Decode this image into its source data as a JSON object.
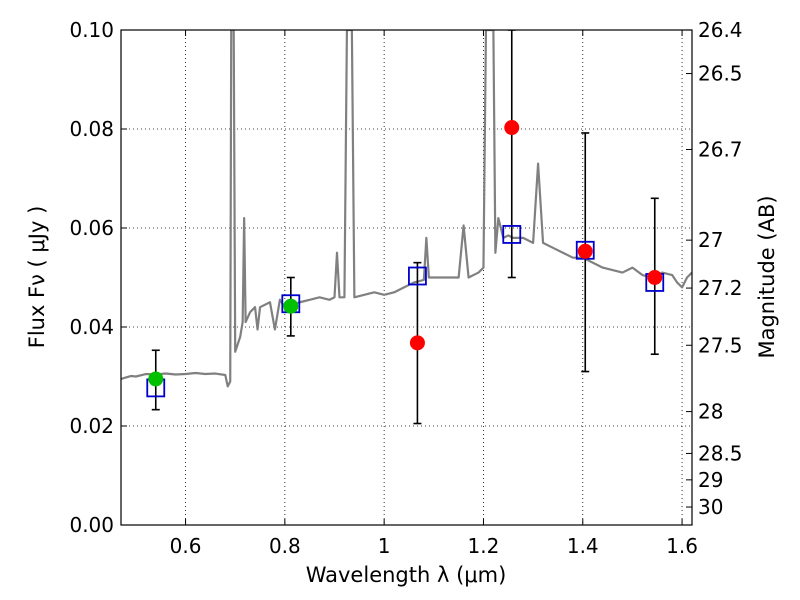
{
  "chart_data": {
    "type": "scatter",
    "xlabel": "Wavelength  λ (μm)",
    "ylabel": "Flux  Fν  ( μJy )",
    "y2label": "Magnitude (AB)",
    "xlim": [
      0.47,
      1.62
    ],
    "ylim": [
      0.0,
      0.1
    ],
    "xticks": [
      0.6,
      0.8,
      1.0,
      1.2,
      1.4,
      1.6
    ],
    "xtick_labels": [
      "0.6",
      "0.8",
      "1",
      "1.2",
      "1.4",
      "1.6"
    ],
    "yticks": [
      0.0,
      0.02,
      0.04,
      0.06,
      0.08,
      0.1
    ],
    "ytick_labels": [
      "0.00",
      "0.02",
      "0.04",
      "0.06",
      "0.08",
      "0.10"
    ],
    "mag_ticks": [
      26.4,
      26.5,
      26.7,
      27,
      27.2,
      27.5,
      28,
      28.5,
      29,
      30
    ],
    "mag_tick_labels": [
      "26.4",
      "26.5",
      "26.7",
      "27",
      "27.2",
      "27.5",
      "28",
      "28.5",
      "29",
      "30"
    ],
    "grid": true,
    "spectrum": {
      "color": "#808080",
      "points": [
        [
          0.47,
          0.0295
        ],
        [
          0.48,
          0.0298
        ],
        [
          0.49,
          0.0301
        ],
        [
          0.5,
          0.03
        ],
        [
          0.52,
          0.0305
        ],
        [
          0.54,
          0.0304
        ],
        [
          0.56,
          0.0306
        ],
        [
          0.58,
          0.0304
        ],
        [
          0.6,
          0.0305
        ],
        [
          0.62,
          0.0307
        ],
        [
          0.64,
          0.0305
        ],
        [
          0.66,
          0.0306
        ],
        [
          0.68,
          0.0303
        ],
        [
          0.685,
          0.028
        ],
        [
          0.69,
          0.029
        ],
        [
          0.692,
          0.1
        ],
        [
          0.697,
          0.1
        ],
        [
          0.7,
          0.035
        ],
        [
          0.71,
          0.038
        ],
        [
          0.715,
          0.041
        ],
        [
          0.718,
          0.062
        ],
        [
          0.721,
          0.041
        ],
        [
          0.73,
          0.043
        ],
        [
          0.74,
          0.044
        ],
        [
          0.745,
          0.0395
        ],
        [
          0.75,
          0.044
        ],
        [
          0.77,
          0.045
        ],
        [
          0.78,
          0.0395
        ],
        [
          0.79,
          0.0455
        ],
        [
          0.8,
          0.044
        ],
        [
          0.83,
          0.045
        ],
        [
          0.85,
          0.0455
        ],
        [
          0.87,
          0.046
        ],
        [
          0.89,
          0.0455
        ],
        [
          0.9,
          0.046
        ],
        [
          0.905,
          0.055
        ],
        [
          0.91,
          0.046
        ],
        [
          0.92,
          0.046
        ],
        [
          0.925,
          0.1
        ],
        [
          0.935,
          0.1
        ],
        [
          0.94,
          0.046
        ],
        [
          0.96,
          0.0465
        ],
        [
          0.98,
          0.047
        ],
        [
          1.0,
          0.0465
        ],
        [
          1.02,
          0.047
        ],
        [
          1.04,
          0.048
        ],
        [
          1.06,
          0.049
        ],
        [
          1.08,
          0.0495
        ],
        [
          1.085,
          0.058
        ],
        [
          1.09,
          0.05
        ],
        [
          1.12,
          0.05
        ],
        [
          1.15,
          0.05
        ],
        [
          1.16,
          0.0605
        ],
        [
          1.17,
          0.05
        ],
        [
          1.19,
          0.051
        ],
        [
          1.2,
          0.052
        ],
        [
          1.205,
          0.1
        ],
        [
          1.22,
          0.1
        ],
        [
          1.224,
          0.055
        ],
        [
          1.23,
          0.062
        ],
        [
          1.24,
          0.058
        ],
        [
          1.25,
          0.0585
        ],
        [
          1.26,
          0.058
        ],
        [
          1.28,
          0.058
        ],
        [
          1.3,
          0.057
        ],
        [
          1.31,
          0.073
        ],
        [
          1.32,
          0.057
        ],
        [
          1.34,
          0.056
        ],
        [
          1.36,
          0.055
        ],
        [
          1.38,
          0.054
        ],
        [
          1.4,
          0.054
        ],
        [
          1.42,
          0.053
        ],
        [
          1.44,
          0.052
        ],
        [
          1.46,
          0.0515
        ],
        [
          1.48,
          0.051
        ],
        [
          1.5,
          0.052
        ],
        [
          1.52,
          0.0505
        ],
        [
          1.54,
          0.05
        ],
        [
          1.56,
          0.051
        ],
        [
          1.58,
          0.0505
        ],
        [
          1.59,
          0.049
        ],
        [
          1.6,
          0.048
        ],
        [
          1.61,
          0.05
        ],
        [
          1.62,
          0.051
        ]
      ]
    },
    "model_points": {
      "marker": "open-square",
      "color": "#0000cc",
      "x": [
        0.54,
        0.812,
        1.067,
        1.257,
        1.405,
        1.545
      ],
      "y": [
        0.0277,
        0.0447,
        0.0503,
        0.0587,
        0.0555,
        0.049
      ]
    },
    "observed_points": [
      {
        "x": 0.54,
        "y": 0.0295,
        "err_low": 0.0233,
        "err_high": 0.0353,
        "color": "#00c000"
      },
      {
        "x": 0.812,
        "y": 0.0442,
        "err_low": 0.0382,
        "err_high": 0.05,
        "color": "#00c000"
      },
      {
        "x": 1.067,
        "y": 0.0368,
        "err_low": 0.0205,
        "err_high": 0.053,
        "color": "#ff0000"
      },
      {
        "x": 1.257,
        "y": 0.0803,
        "err_low": 0.05,
        "err_high": 0.1,
        "color": "#ff0000"
      },
      {
        "x": 1.405,
        "y": 0.0553,
        "err_low": 0.031,
        "err_high": 0.0792,
        "color": "#ff0000"
      },
      {
        "x": 1.545,
        "y": 0.05,
        "err_low": 0.0345,
        "err_high": 0.066,
        "color": "#ff0000"
      }
    ]
  }
}
